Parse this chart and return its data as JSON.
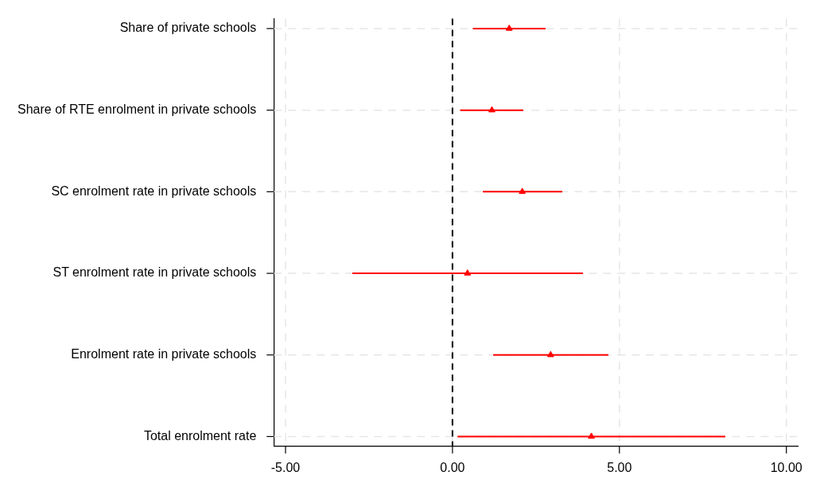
{
  "chart_data": {
    "type": "scatter",
    "categories": [
      "Share of private schools",
      "Share of RTE enrolment in private schools",
      "SC enrolment rate in private schools",
      "ST enrolment rate in private schools",
      "Enrolment rate in private schools",
      "Total enrolment rate"
    ],
    "series": [
      {
        "color": "#ff0000",
        "values": [
          1.7,
          1.18,
          2.09,
          0.45,
          2.94,
          4.16
        ],
        "errors": [
          [
            0.61,
            2.79
          ],
          [
            0.23,
            2.12
          ],
          [
            0.91,
            3.29
          ],
          [
            -3.0,
            3.91
          ],
          [
            1.22,
            4.67
          ],
          [
            0.15,
            8.17
          ]
        ]
      }
    ],
    "orientation": "horizontal",
    "xlim": [
      -5.35,
      10.34
    ],
    "xticks": [
      {
        "value": -5,
        "label": "-5.00"
      },
      {
        "value": 0,
        "label": "0.00"
      },
      {
        "value": 5,
        "label": "5.00"
      },
      {
        "value": 10,
        "label": "10.00"
      }
    ],
    "ref_lines": [
      {
        "axis": "x",
        "value": 0,
        "color": "#000000",
        "line_style": "dashed"
      }
    ],
    "grid": true,
    "legend": false,
    "marker": "triangle"
  }
}
